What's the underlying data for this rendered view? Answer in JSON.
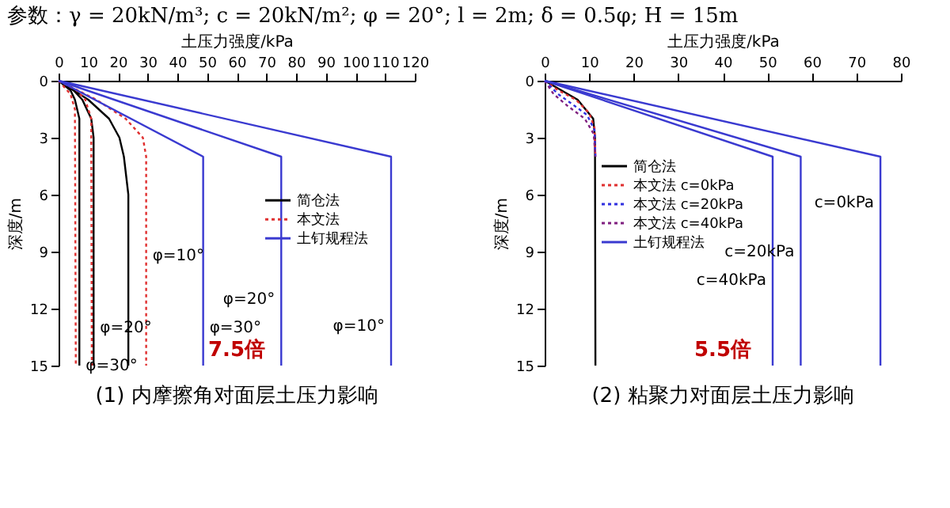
{
  "chart_data": [
    {
      "type": "line",
      "title": "(1) 内摩擦角对面层土压力影响",
      "subtitle": "参数：γ = 20kN/m³; c = 20kN/m²; φ = 20°; l = 2m; δ = 0.5φ; H = 15m",
      "xlabel": "土压力强度/kPa",
      "ylabel": "深度/m",
      "xlim": [
        0,
        120
      ],
      "xticks": [
        0,
        10,
        20,
        30,
        40,
        50,
        60,
        70,
        80,
        90,
        100,
        110,
        120
      ],
      "ylim": [
        15,
        0
      ],
      "yticks": [
        0,
        3,
        6,
        9,
        12,
        15
      ],
      "grid": false,
      "legend": "right",
      "marker": "none",
      "series": [
        {
          "name": "简仓法",
          "color": "#000000",
          "line_style": "solid",
          "x": [
            0,
            10,
            17,
            20.5,
            22,
            23.5,
            23.5
          ],
          "values": [
            0,
            1,
            2,
            3,
            4,
            6,
            15
          ]
        },
        {
          "color": "#000000",
          "line_style": "solid",
          "x": [
            0,
            5,
            8,
            11,
            11.8,
            11.8
          ],
          "values": [
            0,
            0.5,
            1,
            2,
            3,
            15
          ]
        },
        {
          "color": "#000000",
          "line_style": "solid",
          "x": [
            0,
            4,
            5.5,
            7,
            7,
            7
          ],
          "values": [
            0,
            0.5,
            1,
            2,
            3,
            15
          ]
        },
        {
          "name": "本文法",
          "color": "#e03030",
          "line_style": "dotted",
          "x": [
            0,
            12.7,
            22.6,
            28.4,
            29.5,
            29.5
          ],
          "values": [
            0,
            1,
            2,
            3,
            4,
            15
          ]
        },
        {
          "color": "#e03030",
          "line_style": "dotted",
          "x": [
            0,
            6,
            9,
            11,
            11.2
          ],
          "values": [
            0,
            0.5,
            1,
            2,
            15
          ]
        },
        {
          "color": "#e03030",
          "line_style": "dotted",
          "x": [
            0,
            4,
            5.5,
            5.8
          ],
          "values": [
            0,
            0.7,
            1.5,
            15
          ]
        },
        {
          "name": "土钉规程法",
          "color": "#3a3ad0",
          "line_style": "solid",
          "x": [
            0,
            112,
            112
          ],
          "values": [
            0,
            4,
            15
          ]
        },
        {
          "color": "#3a3ad0",
          "line_style": "solid",
          "x": [
            0,
            75,
            75
          ],
          "values": [
            0,
            4,
            15
          ]
        },
        {
          "color": "#3a3ad0",
          "line_style": "solid",
          "x": [
            0,
            48.7,
            48.7
          ],
          "values": [
            0,
            4,
            15
          ]
        }
      ],
      "annotations": [
        {
          "text": "φ=10°",
          "x": 29.5,
          "y": 9.2
        },
        {
          "text": "φ=20°",
          "x": 11.8,
          "y": 13
        },
        {
          "text": "φ=30°",
          "x": 7,
          "y": 15
        },
        {
          "text": "φ=20°",
          "x": 75,
          "y": 11.5
        },
        {
          "text": "φ=30°",
          "x": 48.7,
          "y": 13
        },
        {
          "text": "φ=10°",
          "x": 112,
          "y": 12.9
        },
        "7.5倍"
      ]
    },
    {
      "type": "line",
      "title": "(2) 粘聚力对面层土压力影响",
      "xlabel": "土压力强度/kPa",
      "ylabel": "深度/m",
      "xlim": [
        0,
        80
      ],
      "xticks": [
        0,
        10,
        20,
        30,
        40,
        50,
        60,
        70,
        80
      ],
      "ylim": [
        15,
        0
      ],
      "yticks": [
        0,
        3,
        6,
        9,
        12,
        15
      ],
      "grid": false,
      "legend": "left",
      "marker": "none",
      "series": [
        {
          "name": "简仓法",
          "color": "#000000",
          "line_style": "solid",
          "x": [
            0,
            7.4,
            10.9,
            11.3,
            11.4
          ],
          "values": [
            0,
            1,
            2,
            3,
            15
          ]
        },
        {
          "name": "本文法 c=0kPa",
          "color": "#e03030",
          "line_style": "dotted",
          "x": [
            0,
            3,
            7,
            10,
            11.2,
            11.4
          ],
          "values": [
            0,
            0.5,
            1,
            1.7,
            2.5,
            4
          ]
        },
        {
          "name": "本文法 c=20kPa",
          "color": "#3030e0",
          "line_style": "dotted",
          "x": [
            0,
            3,
            6,
            9.5,
            11.2,
            11.4
          ],
          "values": [
            0,
            0.7,
            1.2,
            1.8,
            2.6,
            4
          ]
        },
        {
          "name": "本文法 c=40kPa",
          "color": "#802080",
          "line_style": "dotted",
          "x": [
            0,
            2,
            5,
            9,
            11,
            11.4
          ],
          "values": [
            0,
            0.7,
            1.3,
            2,
            2.8,
            4
          ]
        },
        {
          "name": "土钉规程法",
          "color": "#3a3ad0",
          "line_style": "solid",
          "x": [
            0,
            75.4,
            75.4
          ],
          "values": [
            0,
            4,
            15
          ]
        },
        {
          "color": "#3a3ad0",
          "line_style": "solid",
          "x": [
            0,
            57.5,
            57.5
          ],
          "values": [
            0,
            4,
            15
          ]
        },
        {
          "color": "#3a3ad0",
          "line_style": "solid",
          "x": [
            0,
            51.2,
            51.2
          ],
          "values": [
            0,
            4,
            15
          ]
        }
      ],
      "annotations": [
        {
          "text": "c=0kPa",
          "x": 75.4,
          "y": 6.4
        },
        {
          "text": "c=20kPa",
          "x": 57.5,
          "y": 9
        },
        {
          "text": "c=40kPa",
          "x": 51.2,
          "y": 10.5
        },
        "5.5倍"
      ]
    }
  ]
}
